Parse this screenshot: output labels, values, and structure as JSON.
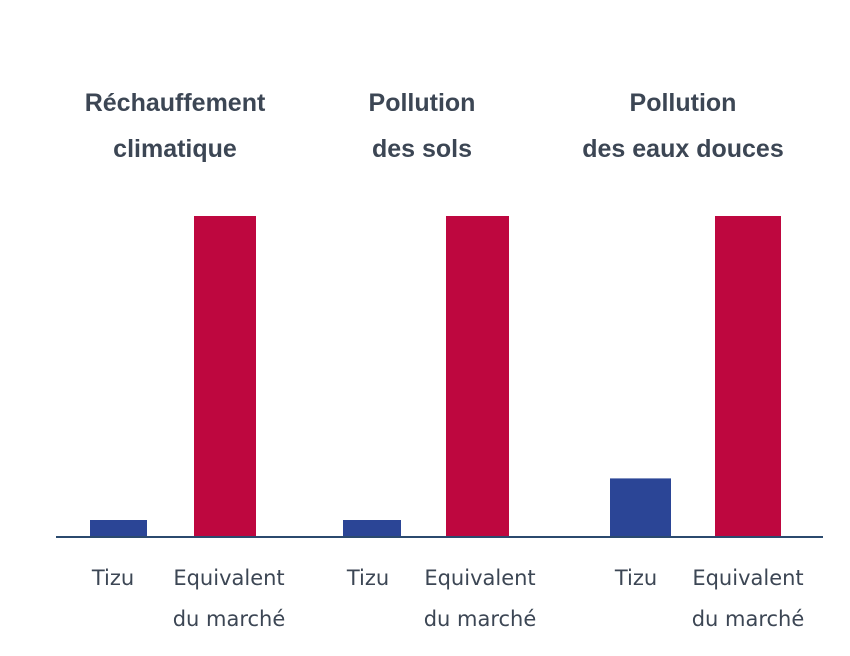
{
  "chart_data": {
    "type": "bar",
    "colors": {
      "tizu": "#2b4596",
      "market": "#be073f",
      "baseline": "#2b4a6e",
      "text": "#3c4654"
    },
    "grid": false,
    "legend": "none",
    "ylim": [
      0,
      100
    ],
    "groups": [
      {
        "title": [
          "Réchauffement",
          "climatique"
        ],
        "bars": [
          {
            "label": [
              "Tizu"
            ],
            "value": 5,
            "color": "#2b4596"
          },
          {
            "label": [
              "Equivalent",
              "du marché"
            ],
            "value": 100,
            "color": "#be073f"
          }
        ]
      },
      {
        "title": [
          "Pollution",
          "des sols"
        ],
        "bars": [
          {
            "label": [
              "Tizu"
            ],
            "value": 5,
            "color": "#2b4596"
          },
          {
            "label": [
              "Equivalent",
              "du marché"
            ],
            "value": 100,
            "color": "#be073f"
          }
        ]
      },
      {
        "title": [
          "Pollution",
          "des eaux douces"
        ],
        "bars": [
          {
            "label": [
              "Tizu"
            ],
            "value": 18,
            "color": "#2b4596"
          },
          {
            "label": [
              "Equivalent",
              "du marché"
            ],
            "value": 100,
            "color": "#be073f"
          }
        ]
      }
    ]
  }
}
